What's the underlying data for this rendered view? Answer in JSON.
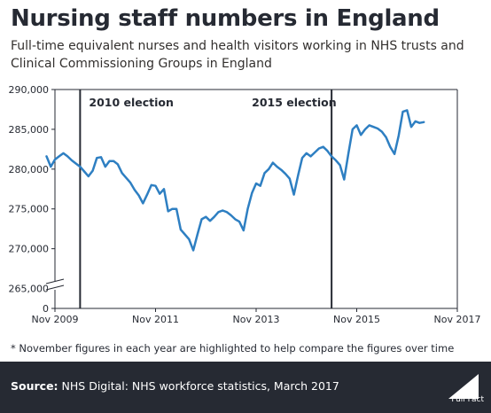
{
  "title": "Nursing staff numbers in England",
  "subtitle": "Full-time equivalent nurses and health visitors working in NHS trusts and Clinical Commissioning Groups in England",
  "footnote": "* November figures in each year are highlighted to help compare the figures over time",
  "footer": {
    "source_label": "Source:",
    "source_text": "NHS Digital: NHS workforce statistics, March 2017",
    "logo_text": "Full Fact"
  },
  "colors": {
    "line": "#2e7fc2",
    "footer_bg": "#262a33",
    "axis": "#262a33"
  },
  "chart_data": {
    "type": "line",
    "title": "Nursing staff numbers in England",
    "xlabel": "",
    "ylabel": "",
    "x_range": [
      "Nov 2009",
      "Nov 2017"
    ],
    "x_ticks": [
      "Nov 2009",
      "Nov 2011",
      "Nov 2013",
      "Nov 2015",
      "Nov 2017"
    ],
    "y_ticks": [
      0,
      265000,
      270000,
      275000,
      280000,
      285000,
      290000
    ],
    "y_tick_labels": [
      "0",
      "265,000",
      "270,000",
      "275,000",
      "280,000",
      "285,000",
      "290,000"
    ],
    "ylim_break": [
      0,
      262500
    ],
    "ylim": [
      262500,
      290000
    ],
    "grid": false,
    "annotations": [
      {
        "label": "2010 election",
        "x": "May 2010"
      },
      {
        "label": "2015 election",
        "x": "May 2015"
      }
    ],
    "series": [
      {
        "values": [
          {
            "x": "2009-09",
            "y": 281600
          },
          {
            "x": "2009-10",
            "y": 280300
          },
          {
            "x": "2009-11",
            "y": 281200
          },
          {
            "x": "2009-12",
            "y": 281600
          },
          {
            "x": "2010-01",
            "y": 282000
          },
          {
            "x": "2010-02",
            "y": 281600
          },
          {
            "x": "2010-03",
            "y": 281100
          },
          {
            "x": "2010-04",
            "y": 280700
          },
          {
            "x": "2010-05",
            "y": 280300
          },
          {
            "x": "2010-06",
            "y": 279700
          },
          {
            "x": "2010-07",
            "y": 279100
          },
          {
            "x": "2010-08",
            "y": 279800
          },
          {
            "x": "2010-09",
            "y": 281400
          },
          {
            "x": "2010-10",
            "y": 281500
          },
          {
            "x": "2010-11",
            "y": 280300
          },
          {
            "x": "2010-12",
            "y": 281000
          },
          {
            "x": "2011-01",
            "y": 281000
          },
          {
            "x": "2011-02",
            "y": 280600
          },
          {
            "x": "2011-03",
            "y": 279500
          },
          {
            "x": "2011-04",
            "y": 278900
          },
          {
            "x": "2011-05",
            "y": 278300
          },
          {
            "x": "2011-06",
            "y": 277400
          },
          {
            "x": "2011-07",
            "y": 276700
          },
          {
            "x": "2011-08",
            "y": 275700
          },
          {
            "x": "2011-09",
            "y": 276800
          },
          {
            "x": "2011-10",
            "y": 278000
          },
          {
            "x": "2011-11",
            "y": 277900
          },
          {
            "x": "2011-12",
            "y": 276900
          },
          {
            "x": "2012-01",
            "y": 277500
          },
          {
            "x": "2012-02",
            "y": 274700
          },
          {
            "x": "2012-03",
            "y": 275000
          },
          {
            "x": "2012-04",
            "y": 275000
          },
          {
            "x": "2012-05",
            "y": 272400
          },
          {
            "x": "2012-06",
            "y": 271800
          },
          {
            "x": "2012-07",
            "y": 271200
          },
          {
            "x": "2012-08",
            "y": 269800
          },
          {
            "x": "2012-09",
            "y": 271800
          },
          {
            "x": "2012-10",
            "y": 273700
          },
          {
            "x": "2012-11",
            "y": 274000
          },
          {
            "x": "2012-12",
            "y": 273500
          },
          {
            "x": "2013-01",
            "y": 274000
          },
          {
            "x": "2013-02",
            "y": 274600
          },
          {
            "x": "2013-03",
            "y": 274800
          },
          {
            "x": "2013-04",
            "y": 274600
          },
          {
            "x": "2013-05",
            "y": 274200
          },
          {
            "x": "2013-06",
            "y": 273700
          },
          {
            "x": "2013-07",
            "y": 273400
          },
          {
            "x": "2013-08",
            "y": 272300
          },
          {
            "x": "2013-09",
            "y": 275000
          },
          {
            "x": "2013-10",
            "y": 277000
          },
          {
            "x": "2013-11",
            "y": 278200
          },
          {
            "x": "2013-12",
            "y": 277900
          },
          {
            "x": "2014-01",
            "y": 279500
          },
          {
            "x": "2014-02",
            "y": 280000
          },
          {
            "x": "2014-03",
            "y": 280800
          },
          {
            "x": "2014-04",
            "y": 280300
          },
          {
            "x": "2014-05",
            "y": 279900
          },
          {
            "x": "2014-06",
            "y": 279400
          },
          {
            "x": "2014-07",
            "y": 278800
          },
          {
            "x": "2014-08",
            "y": 276800
          },
          {
            "x": "2014-09",
            "y": 279200
          },
          {
            "x": "2014-10",
            "y": 281400
          },
          {
            "x": "2014-11",
            "y": 282000
          },
          {
            "x": "2014-12",
            "y": 281600
          },
          {
            "x": "2015-01",
            "y": 282100
          },
          {
            "x": "2015-02",
            "y": 282600
          },
          {
            "x": "2015-03",
            "y": 282800
          },
          {
            "x": "2015-04",
            "y": 282300
          },
          {
            "x": "2015-05",
            "y": 281600
          },
          {
            "x": "2015-06",
            "y": 281100
          },
          {
            "x": "2015-07",
            "y": 280500
          },
          {
            "x": "2015-08",
            "y": 278700
          },
          {
            "x": "2015-09",
            "y": 281900
          },
          {
            "x": "2015-10",
            "y": 285000
          },
          {
            "x": "2015-11",
            "y": 285500
          },
          {
            "x": "2015-12",
            "y": 284300
          },
          {
            "x": "2016-01",
            "y": 285000
          },
          {
            "x": "2016-02",
            "y": 285500
          },
          {
            "x": "2016-03",
            "y": 285300
          },
          {
            "x": "2016-04",
            "y": 285100
          },
          {
            "x": "2016-05",
            "y": 284700
          },
          {
            "x": "2016-06",
            "y": 284000
          },
          {
            "x": "2016-07",
            "y": 282800
          },
          {
            "x": "2016-08",
            "y": 281900
          },
          {
            "x": "2016-09",
            "y": 284200
          },
          {
            "x": "2016-10",
            "y": 287200
          },
          {
            "x": "2016-11",
            "y": 287400
          },
          {
            "x": "2016-12",
            "y": 285300
          },
          {
            "x": "2017-01",
            "y": 286000
          },
          {
            "x": "2017-02",
            "y": 285800
          },
          {
            "x": "2017-03",
            "y": 285900
          }
        ]
      }
    ]
  }
}
